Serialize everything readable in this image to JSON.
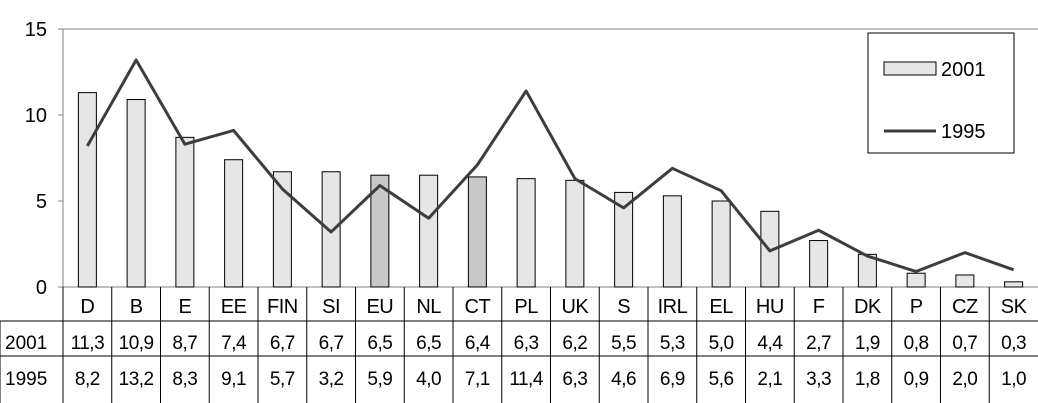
{
  "chart_data": {
    "type": "bar",
    "categories": [
      "D",
      "B",
      "E",
      "EE",
      "FIN",
      "SI",
      "EU",
      "NL",
      "CT",
      "PL",
      "UK",
      "S",
      "IRL",
      "EL",
      "HU",
      "F",
      "DK",
      "P",
      "CZ",
      "SK"
    ],
    "series": [
      {
        "name": "2001",
        "type": "bar",
        "values": [
          11.3,
          10.9,
          8.7,
          7.4,
          6.7,
          6.7,
          6.5,
          6.5,
          6.4,
          6.3,
          6.2,
          5.5,
          5.3,
          5.0,
          4.4,
          2.7,
          1.9,
          0.8,
          0.7,
          0.3
        ],
        "labels": [
          "11,3",
          "10,9",
          "8,7",
          "7,4",
          "6,7",
          "6,7",
          "6,5",
          "6,5",
          "6,4",
          "6,3",
          "6,2",
          "5,5",
          "5,3",
          "5,0",
          "4,4",
          "2,7",
          "1,9",
          "0,8",
          "0,7",
          "0,3"
        ]
      },
      {
        "name": "1995",
        "type": "line",
        "values": [
          8.2,
          13.2,
          8.3,
          9.1,
          5.7,
          3.2,
          5.9,
          4.0,
          7.1,
          11.4,
          6.3,
          4.6,
          6.9,
          5.6,
          2.1,
          3.3,
          1.8,
          0.9,
          2.0,
          1.0
        ],
        "labels": [
          "8,2",
          "13,2",
          "8,3",
          "9,1",
          "5,7",
          "3,2",
          "5,9",
          "4,0",
          "7,1",
          "11,4",
          "6,3",
          "4,6",
          "6,9",
          "5,6",
          "2,1",
          "3,3",
          "1,8",
          "0,9",
          "2,0",
          "1,0"
        ]
      }
    ],
    "ylim": [
      0,
      15
    ],
    "yticks": [
      0,
      5,
      10,
      15
    ],
    "ytick_labels": [
      "0",
      "5",
      "10",
      "15"
    ],
    "legend_position": "top-right",
    "grid": false,
    "data_table": true,
    "colors": {
      "bar": "#e6e6e6",
      "bar_highlight": "#c8c8c8",
      "highlight_categories": [
        "EU",
        "CT"
      ],
      "line": "#3d3d3d",
      "axis": "#808080"
    },
    "title": "",
    "xlabel": "",
    "ylabel": ""
  }
}
